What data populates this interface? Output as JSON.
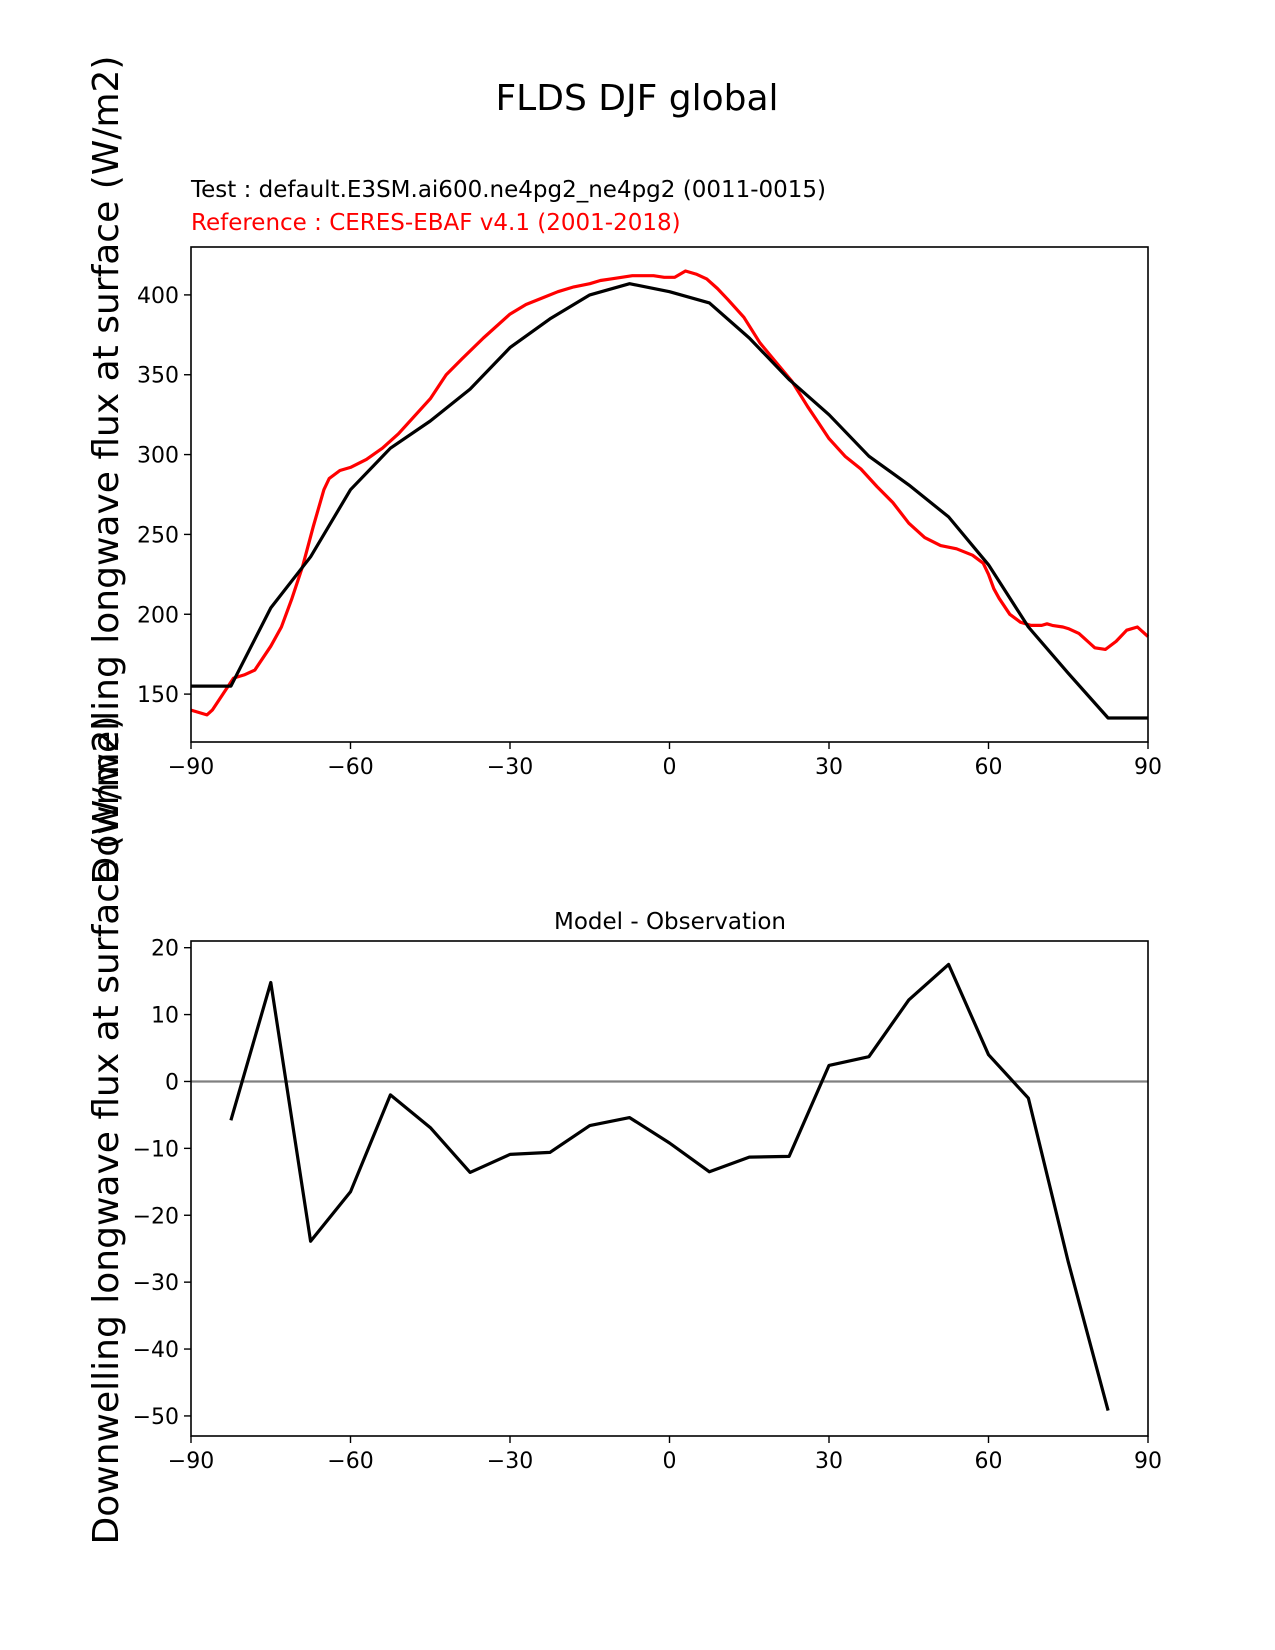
{
  "figure_title": "FLDS DJF global",
  "chart_data": [
    {
      "type": "line",
      "test_label": "Test : default.E3SM.ai600.ne4pg2_ne4pg2 (0011-0015)",
      "reference_label": "Reference : CERES-EBAF v4.1 (2001-2018)",
      "ylabel": "Downwelling longwave flux at surface (W/m2)",
      "xlabel": "",
      "xlim": [
        -90,
        90
      ],
      "ylim": [
        120,
        430
      ],
      "xticks": [
        -90,
        -60,
        -30,
        0,
        30,
        60,
        90
      ],
      "xtick_labels": [
        "−90",
        "−60",
        "−30",
        "0",
        "30",
        "60",
        "90"
      ],
      "yticks": [
        150,
        200,
        250,
        300,
        350,
        400
      ],
      "ytick_labels": [
        "150",
        "200",
        "250",
        "300",
        "350",
        "400"
      ],
      "series": [
        {
          "name": "Reference : CERES-EBAF v4.1 (2001-2018)",
          "color": "#ff0000",
          "x": [
            -90,
            -87,
            -86,
            -84,
            -82,
            -80,
            -78,
            -75,
            -73,
            -71,
            -69,
            -67,
            -65,
            -64,
            -62,
            -60,
            -57,
            -54,
            -51,
            -48,
            -45,
            -42,
            -39,
            -35,
            -30,
            -27,
            -24,
            -21,
            -18,
            -15,
            -13,
            -11,
            -9,
            -7,
            -5,
            -3,
            -1,
            1,
            3,
            5,
            7,
            9,
            11,
            14,
            17,
            20,
            23,
            26,
            28,
            30,
            33,
            36,
            39,
            42,
            45,
            48,
            51,
            54,
            57,
            59,
            60,
            61,
            62,
            64,
            66,
            68,
            70,
            71,
            72,
            74,
            75,
            77,
            78,
            79,
            80,
            82,
            84,
            86,
            88,
            90
          ],
          "y": [
            140,
            137,
            140,
            150,
            160,
            162,
            165,
            180,
            192,
            210,
            230,
            255,
            278,
            285,
            290,
            292,
            297,
            304,
            313,
            324,
            335,
            350,
            360,
            373,
            388,
            394,
            398,
            402,
            405,
            407,
            409,
            410,
            411,
            412,
            412,
            412,
            411,
            411,
            415,
            413,
            410,
            404,
            397,
            386,
            370,
            358,
            346,
            330,
            320,
            310,
            299,
            291,
            280,
            270,
            257,
            248,
            243,
            241,
            237,
            232,
            225,
            216,
            210,
            200,
            195,
            193,
            193,
            194,
            193,
            192,
            191,
            188,
            185,
            182,
            179,
            178,
            183,
            190,
            192,
            186
          ]
        },
        {
          "name": "Test : default.E3SM.ai600.ne4pg2_ne4pg2 (0011-0015)",
          "color": "#000000",
          "x": [
            -90,
            -82.5,
            -75,
            -67.5,
            -60,
            -52.5,
            -45,
            -37.5,
            -30,
            -22.5,
            -15,
            -7.5,
            0,
            7.5,
            15,
            22.5,
            30,
            37.5,
            45,
            52.5,
            60,
            67.5,
            75,
            82.5,
            90
          ],
          "y": [
            155,
            155,
            204,
            236,
            278,
            304,
            321,
            341,
            367,
            385,
            400,
            407,
            402,
            395,
            373,
            347,
            325,
            299,
            281,
            261,
            231,
            192,
            163,
            135,
            135
          ]
        }
      ]
    },
    {
      "type": "line",
      "title": "Model - Observation",
      "ylabel": "Downwelling longwave flux at surface (W/m2)",
      "xlabel": "",
      "xlim": [
        -90,
        90
      ],
      "ylim": [
        -53,
        21
      ],
      "xticks": [
        -90,
        -60,
        -30,
        0,
        30,
        60,
        90
      ],
      "xtick_labels": [
        "−90",
        "−60",
        "−30",
        "0",
        "30",
        "60",
        "90"
      ],
      "yticks": [
        -50,
        -40,
        -30,
        -20,
        -10,
        0,
        10,
        20
      ],
      "ytick_labels": [
        "−50",
        "−40",
        "−30",
        "−20",
        "−10",
        "0",
        "10",
        "20"
      ],
      "zero_line": 0,
      "series": [
        {
          "name": "Model - Observation",
          "color": "#000000",
          "x": [
            -82.5,
            -75,
            -67.5,
            -60,
            -52.5,
            -45,
            -37.5,
            -30,
            -22.5,
            -15,
            -7.5,
            0,
            7.5,
            15,
            22.5,
            30,
            37.5,
            45,
            52.5,
            60,
            67.5,
            75,
            82.5
          ],
          "y": [
            -5.8,
            14.8,
            -23.9,
            -16.5,
            -2,
            -6.9,
            -13.6,
            -10.9,
            -10.6,
            -6.6,
            -5.4,
            -9.2,
            -13.5,
            -11.3,
            -11.2,
            2.4,
            3.7,
            12.2,
            17.5,
            4,
            -2.5,
            -27,
            -49.2
          ]
        }
      ]
    }
  ],
  "colors": {
    "reference": "#ff0000",
    "test": "#000000",
    "zero_line": "#808080"
  }
}
